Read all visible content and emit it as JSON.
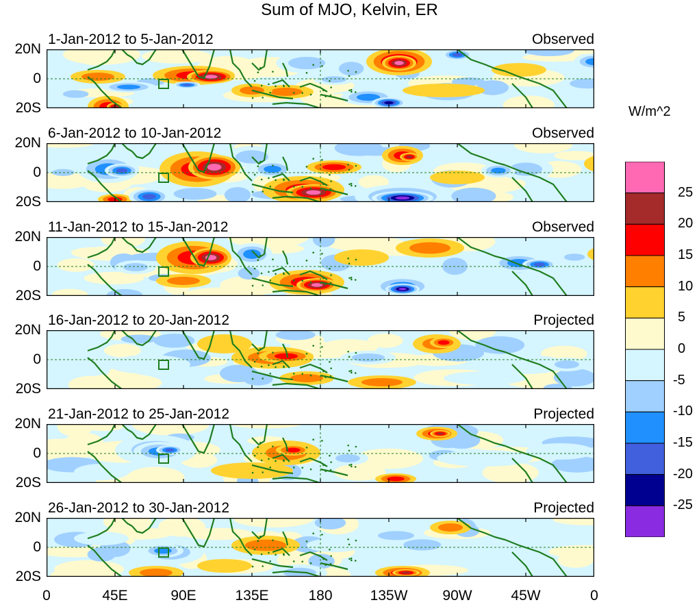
{
  "title": "Sum of MJO, Kelvin, ER",
  "panels": [
    {
      "date": "1-Jan-2012 to 5-Jan-2012",
      "status": "Observed"
    },
    {
      "date": "6-Jan-2012 to 10-Jan-2012",
      "status": "Observed"
    },
    {
      "date": "11-Jan-2012 to 15-Jan-2012",
      "status": "Observed"
    },
    {
      "date": "16-Jan-2012 to 20-Jan-2012",
      "status": "Projected"
    },
    {
      "date": "21-Jan-2012 to 25-Jan-2012",
      "status": "Projected"
    },
    {
      "date": "26-Jan-2012 to 30-Jan-2012",
      "status": "Projected"
    }
  ],
  "y_labels": [
    "20N",
    "0",
    "20S"
  ],
  "x_labels": [
    "0",
    "45E",
    "90E",
    "135E",
    "180",
    "135W",
    "90W",
    "45W",
    "0"
  ],
  "colorbar": {
    "units": "W/m^2",
    "tick_labels": [
      "25",
      "20",
      "15",
      "10",
      "5",
      "0",
      "-5",
      "-10",
      "-15",
      "-20",
      "-25"
    ],
    "colors": [
      "#ff69b4",
      "#a52a2a",
      "#ff0000",
      "#ff7f00",
      "#ffd230",
      "#fffacd",
      "#d5f5ff",
      "#a0d0ff",
      "#2090ff",
      "#4060dd",
      "#000090",
      "#8a2be2"
    ]
  },
  "map_colors": {
    "coast": "#1e7d1e",
    "lake": "#1e7d1e"
  }
}
